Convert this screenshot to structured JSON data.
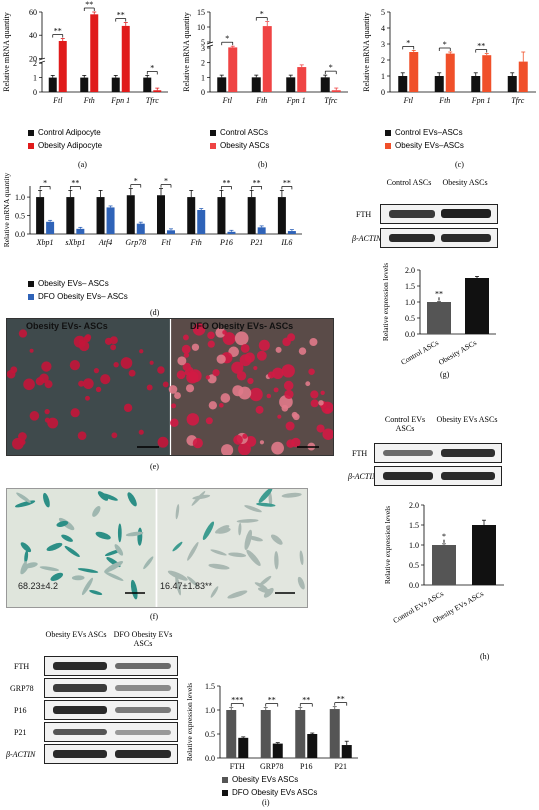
{
  "colors": {
    "black": "#111111",
    "red": "#e01b1b",
    "lightred": "#ef4444",
    "orange": "#f0502a",
    "blue": "#2f63b8",
    "grey": "#555555"
  },
  "panel_labels": {
    "a": "(a)",
    "b": "(b)",
    "c": "(c)",
    "d": "(d)",
    "e": "(e)",
    "f": "(f)",
    "g": "(g)",
    "h": "(h)",
    "i": "(i)"
  },
  "chart_data": [
    {
      "id": "a",
      "type": "bar",
      "ylabel": "Relative mRNA quantity",
      "categories": [
        "Ftl",
        "Fth",
        "Fpn 1",
        "Tfrc"
      ],
      "series": [
        {
          "name": "Control Adipocyte",
          "color": "#111111",
          "values": [
            1,
            1,
            1,
            1
          ]
        },
        {
          "name": "Obesity Adipocyte",
          "color": "#e01b1b",
          "values": [
            35,
            58,
            48,
            0.12
          ]
        }
      ],
      "significance": [
        "**",
        "**",
        "**",
        "*"
      ],
      "ticks": [
        "0",
        "1",
        "2",
        "20",
        "40",
        "60"
      ]
    },
    {
      "id": "b",
      "type": "bar",
      "ylabel": "Relative mRNA quantity",
      "categories": [
        "Ftl",
        "Fth",
        "Fpn 1",
        "Tfrc"
      ],
      "series": [
        {
          "name": "Control ASCs",
          "color": "#111111",
          "values": [
            1,
            1,
            1,
            1
          ]
        },
        {
          "name": "Obesity ASCs",
          "color": "#ef4444",
          "values": [
            3.2,
            10.3,
            1.7,
            0.12
          ]
        }
      ],
      "significance": [
        "*",
        "*",
        "",
        "*"
      ],
      "ticks": [
        "0",
        "1",
        "2",
        "3",
        "5",
        "10",
        "15"
      ]
    },
    {
      "id": "c",
      "type": "bar",
      "ylabel": "Relative mRNA quantity",
      "categories": [
        "Ftl",
        "Fth",
        "Fpn 1",
        "Tfrc"
      ],
      "series": [
        {
          "name": "Control EVs–ASCs",
          "color": "#111111",
          "values": [
            1,
            1,
            1,
            1
          ]
        },
        {
          "name": "Obesity EVs–ASCs",
          "color": "#f0502a",
          "values": [
            2.5,
            2.4,
            2.3,
            1.9
          ]
        }
      ],
      "significance": [
        "*",
        "*",
        "**",
        ""
      ],
      "ticks": [
        "0",
        "1",
        "2",
        "3",
        "4",
        "5"
      ]
    },
    {
      "id": "d",
      "type": "bar",
      "ylabel": "Relative mRNA quantity",
      "categories": [
        "Xbp1",
        "sXbp1",
        "Atf4",
        "Grp78",
        "Ftl",
        "Fth",
        "P16",
        "P21",
        "IL6"
      ],
      "series": [
        {
          "name": "Obesity EVs– ASCs",
          "color": "#111111",
          "values": [
            1,
            1,
            1,
            1.05,
            1.05,
            1,
            1,
            1,
            1
          ]
        },
        {
          "name": "DFO Obesity EVs– ASCs",
          "color": "#2f63b8",
          "values": [
            0.33,
            0.14,
            0.72,
            0.28,
            0.1,
            0.65,
            0.06,
            0.18,
            0.08
          ]
        }
      ],
      "significance": [
        "*",
        "**",
        "",
        "*",
        "*",
        "",
        "**",
        "**",
        "**"
      ],
      "ticks": [
        "0.0",
        "0.5",
        "1.0"
      ]
    },
    {
      "id": "g",
      "type": "bar",
      "ylabel": "Relative expression levels",
      "categories": [
        "Control ASCs",
        "Obesity ASCs"
      ],
      "series": [
        {
          "name": "expression",
          "values": [
            1.0,
            1.75
          ]
        }
      ],
      "colors": [
        "#555555",
        "#111111"
      ],
      "significance": [
        "**"
      ],
      "ticks": [
        "0.0",
        "0.5",
        "1.0",
        "1.5",
        "2.0"
      ]
    },
    {
      "id": "h",
      "type": "bar",
      "ylabel": "Relative expression levels",
      "categories": [
        "Control EVs ASCs",
        "Obesity EVs ASCs"
      ],
      "series": [
        {
          "name": "expression",
          "values": [
            1.0,
            1.5
          ]
        }
      ],
      "colors": [
        "#555555",
        "#111111"
      ],
      "significance": [
        "*"
      ],
      "ticks": [
        "0.0",
        "0.5",
        "1.0",
        "1.5",
        "2.0"
      ]
    },
    {
      "id": "i",
      "type": "bar",
      "ylabel": "Relative expression levels",
      "categories": [
        "FTH",
        "GRP78",
        "P16",
        "P21"
      ],
      "series": [
        {
          "name": "Obesity EVs ASCs",
          "color": "#555555",
          "values": [
            1.0,
            1.0,
            1.0,
            1.02
          ]
        },
        {
          "name": "DFO Obesity EVs ASCs",
          "color": "#111111",
          "values": [
            0.42,
            0.3,
            0.5,
            0.27
          ]
        }
      ],
      "significance": [
        "***",
        "**",
        "**",
        "**"
      ],
      "ticks": [
        "0.0",
        "0.5",
        "1.0",
        "1.5"
      ]
    }
  ],
  "blot_g": {
    "col1": "Control ASCs",
    "col2": "Obesity ASCs",
    "row1": "FTH",
    "row2": "β-ACTIN"
  },
  "blot_h": {
    "col1": "Control EVs ASCs",
    "col2": "Obesity EVs ASCs",
    "row1": "FTH",
    "row2": "β-ACTIN"
  },
  "blot_i": {
    "col1": "Obesity EVs ASCs",
    "col2": "DFO Obesity EVs ASCs",
    "rows": [
      "FTH",
      "GRP78",
      "P16",
      "P21",
      "β-ACTIN"
    ]
  },
  "micro_e": {
    "left": "Obesity EVs- ASCs",
    "right": "DFO Obesity EVs- ASCs"
  },
  "micro_f": {
    "left_value": "68.23±4.2",
    "right_value": "16.47±1.83**"
  }
}
